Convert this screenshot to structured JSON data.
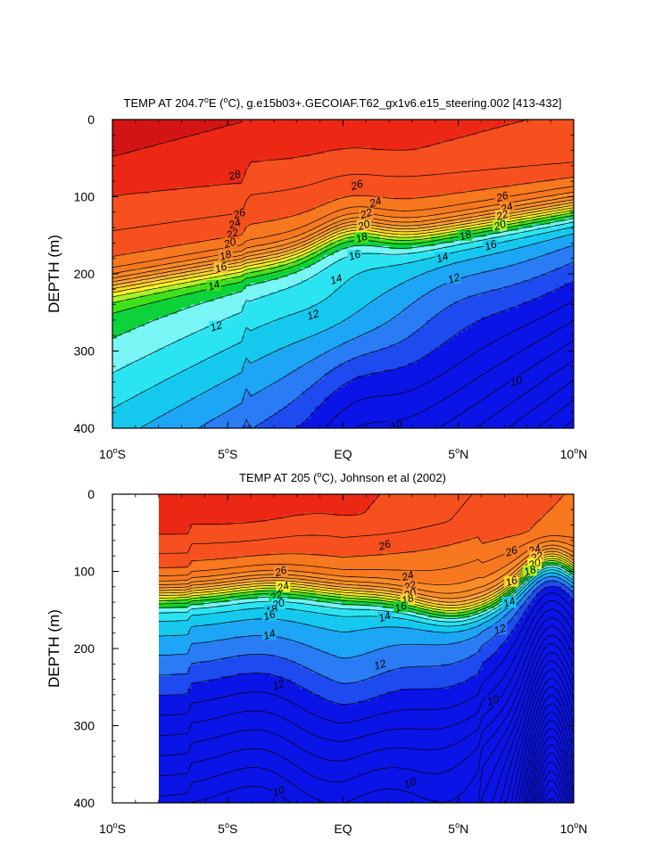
{
  "chart_data": [
    {
      "type": "heatmap",
      "title": "TEMP AT 204.7°E (°C), g.e15b03+.GECOIAF.T62_gx1v6.e15_steering.002 [413-432]",
      "title_parts": [
        "TEMP AT 204.7",
        "o",
        "E (",
        "o",
        "C), g.e15b03+.GECOIAF.T62_gx1v6.e15_steering.002 [413-432]"
      ],
      "xlabel": "",
      "ylabel": "DEPTH (m)",
      "xlim": [
        -10,
        10
      ],
      "ylim": [
        400,
        0
      ],
      "x_tick_values": [
        -10,
        -5,
        0,
        5,
        10
      ],
      "x_ticks": [
        {
          "num": "10",
          "deg": "o",
          "hemi": "S"
        },
        {
          "num": "5",
          "deg": "o",
          "hemi": "S"
        },
        {
          "num": "EQ",
          "deg": "",
          "hemi": ""
        },
        {
          "num": "5",
          "deg": "o",
          "hemi": "N"
        },
        {
          "num": "10",
          "deg": "o",
          "hemi": "N"
        }
      ],
      "y_ticks": [
        0,
        100,
        200,
        300,
        400
      ],
      "contour_interval": 1,
      "contour_labels": [
        {
          "text": "28",
          "x": -4.7,
          "y": 72
        },
        {
          "text": "26",
          "x": 0.6,
          "y": 85
        },
        {
          "text": "26",
          "x": 6.9,
          "y": 100
        },
        {
          "text": "26",
          "x": -4.5,
          "y": 122
        },
        {
          "text": "24",
          "x": 1.4,
          "y": 107
        },
        {
          "text": "24",
          "x": 7.1,
          "y": 114
        },
        {
          "text": "24",
          "x": -4.7,
          "y": 135
        },
        {
          "text": "22",
          "x": 1.0,
          "y": 122
        },
        {
          "text": "22",
          "x": 6.9,
          "y": 124
        },
        {
          "text": "22",
          "x": -4.8,
          "y": 148
        },
        {
          "text": "20",
          "x": 0.9,
          "y": 137
        },
        {
          "text": "20",
          "x": 6.8,
          "y": 137
        },
        {
          "text": "20",
          "x": -4.9,
          "y": 160
        },
        {
          "text": "18",
          "x": 0.8,
          "y": 153
        },
        {
          "text": "18",
          "x": 5.3,
          "y": 150
        },
        {
          "text": "18",
          "x": -5.1,
          "y": 176
        },
        {
          "text": "16",
          "x": 0.5,
          "y": 176
        },
        {
          "text": "16",
          "x": 6.4,
          "y": 163
        },
        {
          "text": "16",
          "x": -5.3,
          "y": 192
        },
        {
          "text": "14",
          "x": 4.3,
          "y": 179
        },
        {
          "text": "14",
          "x": -0.3,
          "y": 207
        },
        {
          "text": "14",
          "x": -5.6,
          "y": 215
        },
        {
          "text": "12",
          "x": 4.8,
          "y": 206
        },
        {
          "text": "12",
          "x": -1.3,
          "y": 253
        },
        {
          "text": "12",
          "x": -5.5,
          "y": 268
        },
        {
          "text": "10",
          "x": 7.5,
          "y": 339
        },
        {
          "text": "10",
          "x": 2.3,
          "y": 396
        }
      ]
    },
    {
      "type": "heatmap",
      "title": "TEMP AT 205 (°C), Johnson et al (2002)",
      "title_parts": [
        "TEMP AT 205 (",
        "o",
        "C), Johnson et al (2002)"
      ],
      "xlabel": "",
      "ylabel": "DEPTH (m)",
      "xlim": [
        -10,
        10
      ],
      "ylim": [
        400,
        0
      ],
      "data_xlim": [
        -8,
        10
      ],
      "x_tick_values": [
        -10,
        -5,
        0,
        5,
        10
      ],
      "x_ticks": [
        {
          "num": "10",
          "deg": "o",
          "hemi": "S"
        },
        {
          "num": "5",
          "deg": "o",
          "hemi": "S"
        },
        {
          "num": "EQ",
          "deg": "",
          "hemi": ""
        },
        {
          "num": "5",
          "deg": "o",
          "hemi": "N"
        },
        {
          "num": "10",
          "deg": "o",
          "hemi": "N"
        }
      ],
      "y_ticks": [
        0,
        100,
        200,
        300,
        400
      ],
      "contour_interval": 1,
      "contour_labels": [
        {
          "text": "26",
          "x": 1.8,
          "y": 66
        },
        {
          "text": "26",
          "x": 7.3,
          "y": 74
        },
        {
          "text": "24",
          "x": 8.3,
          "y": 72
        },
        {
          "text": "22",
          "x": 8.4,
          "y": 81
        },
        {
          "text": "20",
          "x": 8.3,
          "y": 90
        },
        {
          "text": "18",
          "x": 8.1,
          "y": 99
        },
        {
          "text": "16",
          "x": 7.3,
          "y": 113
        },
        {
          "text": "26",
          "x": -2.7,
          "y": 100
        },
        {
          "text": "24",
          "x": 2.8,
          "y": 106
        },
        {
          "text": "24",
          "x": -2.6,
          "y": 120
        },
        {
          "text": "22",
          "x": 2.9,
          "y": 119
        },
        {
          "text": "22",
          "x": -2.9,
          "y": 132
        },
        {
          "text": "20",
          "x": 2.9,
          "y": 129
        },
        {
          "text": "20",
          "x": -2.8,
          "y": 142
        },
        {
          "text": "18",
          "x": 2.8,
          "y": 136
        },
        {
          "text": "18",
          "x": -3.1,
          "y": 150
        },
        {
          "text": "16",
          "x": 2.5,
          "y": 146
        },
        {
          "text": "16",
          "x": -3.2,
          "y": 157
        },
        {
          "text": "14",
          "x": 1.8,
          "y": 159
        },
        {
          "text": "14",
          "x": 7.2,
          "y": 140
        },
        {
          "text": "14",
          "x": -3.2,
          "y": 182
        },
        {
          "text": "12",
          "x": 6.8,
          "y": 175
        },
        {
          "text": "12",
          "x": 1.6,
          "y": 221
        },
        {
          "text": "12",
          "x": -2.8,
          "y": 247
        },
        {
          "text": "10",
          "x": 6.5,
          "y": 267
        },
        {
          "text": "10",
          "x": 2.9,
          "y": 374
        },
        {
          "text": "10",
          "x": -2.8,
          "y": 385
        }
      ]
    }
  ]
}
